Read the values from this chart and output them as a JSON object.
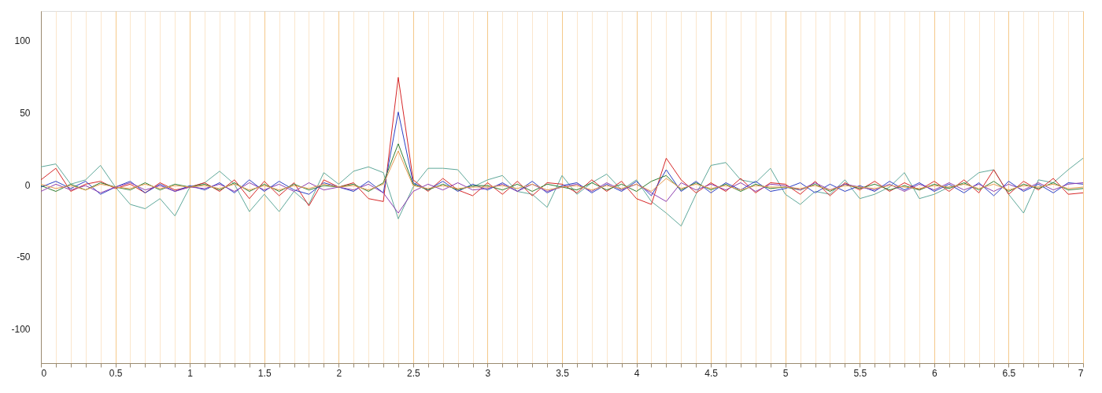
{
  "chart_data": {
    "type": "line",
    "x": [
      0,
      0.1,
      0.2,
      0.3,
      0.4,
      0.5,
      0.6,
      0.7,
      0.8,
      0.9,
      1,
      1.1,
      1.2,
      1.3,
      1.4,
      1.5,
      1.6,
      1.7,
      1.8,
      1.9,
      2,
      2.1,
      2.2,
      2.3,
      2.4,
      2.5,
      2.6,
      2.7,
      2.8,
      2.9,
      3,
      3.1,
      3.2,
      3.3,
      3.4,
      3.5,
      3.6,
      3.7,
      3.8,
      3.9,
      4,
      4.1,
      4.2,
      4.3,
      4.4,
      4.5,
      4.6,
      4.7,
      4.8,
      4.9,
      5,
      5.1,
      5.2,
      5.3,
      5.4,
      5.5,
      5.6,
      5.7,
      5.8,
      5.9,
      6,
      6.1,
      6.2,
      6.3,
      6.4,
      6.5,
      6.6,
      6.7,
      6.8,
      6.9,
      7
    ],
    "series": [
      {
        "color": "#5fa89a",
        "values": [
          14,
          16,
          2,
          5,
          15,
          0,
          -12,
          -15,
          -8,
          -20,
          0,
          3,
          11,
          2,
          -17,
          -5,
          -17,
          -3,
          -12,
          10,
          2,
          11,
          14,
          10,
          -22,
          0,
          13,
          13,
          12,
          0,
          5,
          8,
          -3,
          -5,
          -14,
          8,
          -5,
          3,
          9,
          -2,
          5,
          -10,
          -18,
          -27,
          -5,
          15,
          17,
          5,
          3,
          13,
          -5,
          -12,
          -3,
          -5,
          5,
          -8,
          -5,
          0,
          10,
          -8,
          -5,
          0,
          2,
          10,
          12,
          -5,
          -18,
          5,
          3,
          12,
          20
        ]
      },
      {
        "color": "#d62728",
        "values": [
          5,
          13,
          -3,
          2,
          4,
          -1,
          2,
          -4,
          3,
          -2,
          0,
          3,
          -3,
          5,
          -8,
          4,
          -6,
          3,
          -13,
          5,
          0,
          3,
          -8,
          -10,
          76,
          5,
          -3,
          6,
          -2,
          -6,
          3,
          -5,
          4,
          -6,
          3,
          2,
          -4,
          5,
          -3,
          4,
          -8,
          -12,
          20,
          5,
          -4,
          3,
          -3,
          6,
          -4,
          3,
          2,
          -5,
          4,
          -6,
          3,
          -2,
          4,
          -3,
          3,
          -2,
          4,
          -3,
          5,
          -4,
          12,
          -5,
          4,
          -2,
          6,
          -5,
          -4
        ]
      },
      {
        "color": "#2b3fc4",
        "values": [
          0,
          4,
          -1,
          4,
          -5,
          0,
          4,
          -4,
          2,
          -3,
          1,
          -2,
          3,
          -4,
          5,
          -3,
          4,
          -2,
          -5,
          3,
          0,
          -3,
          4,
          -4,
          52,
          3,
          -2,
          4,
          -3,
          2,
          -2,
          3,
          -3,
          4,
          -4,
          1,
          3,
          -4,
          2,
          -3,
          4,
          -6,
          12,
          -3,
          4,
          -4,
          3,
          -2,
          4,
          -3,
          -1,
          3,
          -4,
          2,
          -3,
          1,
          -3,
          4,
          -2,
          3,
          -3,
          2,
          -4,
          3,
          -6,
          4,
          -3,
          2,
          -4,
          3,
          2
        ]
      },
      {
        "color": "#2e7d32",
        "values": [
          1,
          -3,
          2,
          -2,
          3,
          0,
          -2,
          3,
          -2,
          2,
          0,
          2,
          -2,
          3,
          -3,
          2,
          -3,
          2,
          -2,
          1,
          0,
          2,
          -3,
          3,
          30,
          2,
          -2,
          2,
          -2,
          1,
          1,
          -2,
          2,
          -3,
          2,
          0,
          -2,
          3,
          -2,
          2,
          -3,
          4,
          8,
          -2,
          3,
          -2,
          2,
          -3,
          2,
          -1,
          0,
          -2,
          2,
          -3,
          2,
          -1,
          2,
          -2,
          1,
          -2,
          2,
          -1,
          3,
          -2,
          4,
          -3,
          2,
          -1,
          3,
          -2,
          -1
        ]
      },
      {
        "color": "#8e3fb0",
        "values": [
          -3,
          2,
          -2,
          1,
          -4,
          0,
          3,
          -2,
          1,
          -3,
          0,
          -1,
          2,
          -3,
          3,
          -2,
          2,
          -3,
          3,
          -2,
          0,
          -2,
          2,
          -4,
          -18,
          -3,
          2,
          -2,
          3,
          -2,
          -1,
          2,
          -3,
          2,
          -3,
          0,
          2,
          -3,
          3,
          -2,
          2,
          -4,
          -10,
          3,
          -2,
          2,
          -2,
          3,
          -3,
          2,
          1,
          -2,
          3,
          -2,
          2,
          0,
          -2,
          2,
          -3,
          2,
          -2,
          3,
          -2,
          2,
          -3,
          2,
          -2,
          3,
          -2,
          2,
          3
        ]
      },
      {
        "color": "#e69a4f",
        "values": [
          2,
          -1,
          1,
          -2,
          2,
          0,
          -1,
          2,
          -1,
          1,
          0,
          1,
          -1,
          2,
          -2,
          1,
          -2,
          1,
          -1,
          2,
          0,
          1,
          -2,
          2,
          25,
          1,
          -1,
          1,
          -1,
          0,
          0,
          1,
          -1,
          2,
          -2,
          0,
          1,
          -2,
          1,
          -1,
          2,
          -3,
          6,
          -1,
          2,
          -1,
          1,
          -2,
          1,
          0,
          0,
          -1,
          1,
          -2,
          1,
          0,
          -1,
          1,
          0,
          -1,
          1,
          0,
          2,
          -1,
          2,
          -2,
          1,
          0,
          2,
          -1,
          0
        ]
      }
    ],
    "xlim": [
      0,
      7
    ],
    "ylim": [
      -122,
      122
    ],
    "xticks": [
      0,
      {
        "value": 0.1,
        "label": null
      },
      {
        "value": 0.2,
        "label": null
      },
      {
        "value": 0.3,
        "label": null
      },
      {
        "value": 0.4,
        "label": null
      },
      0.5,
      {
        "value": 0.6,
        "label": null
      },
      {
        "value": 0.7,
        "label": null
      },
      {
        "value": 0.8,
        "label": null
      },
      {
        "value": 0.9,
        "label": null
      },
      1,
      {
        "value": 1.1,
        "label": null
      },
      {
        "value": 1.2,
        "label": null
      },
      {
        "value": 1.3,
        "label": null
      },
      {
        "value": 1.4,
        "label": null
      },
      1.5,
      {
        "value": 1.6,
        "label": null
      },
      {
        "value": 1.7,
        "label": null
      },
      {
        "value": 1.8,
        "label": null
      },
      {
        "value": 1.9,
        "label": null
      },
      2,
      {
        "value": 2.1,
        "label": null
      },
      {
        "value": 2.2,
        "label": null
      },
      {
        "value": 2.3,
        "label": null
      },
      {
        "value": 2.4,
        "label": null
      },
      2.5,
      {
        "value": 2.6,
        "label": null
      },
      {
        "value": 2.7,
        "label": null
      },
      {
        "value": 2.8,
        "label": null
      },
      {
        "value": 2.9,
        "label": null
      },
      3,
      {
        "value": 3.1,
        "label": null
      },
      {
        "value": 3.2,
        "label": null
      },
      {
        "value": 3.3,
        "label": null
      },
      {
        "value": 3.4,
        "label": null
      },
      3.5,
      {
        "value": 3.6,
        "label": null
      },
      {
        "value": 3.7,
        "label": null
      },
      {
        "value": 3.8,
        "label": null
      },
      {
        "value": 3.9,
        "label": null
      },
      4,
      {
        "value": 4.1,
        "label": null
      },
      {
        "value": 4.2,
        "label": null
      },
      {
        "value": 4.3,
        "label": null
      },
      {
        "value": 4.4,
        "label": null
      },
      4.5,
      {
        "value": 4.6,
        "label": null
      },
      {
        "value": 4.7,
        "label": null
      },
      {
        "value": 4.8,
        "label": null
      },
      {
        "value": 4.9,
        "label": null
      },
      5,
      {
        "value": 5.1,
        "label": null
      },
      {
        "value": 5.2,
        "label": null
      },
      {
        "value": 5.3,
        "label": null
      },
      {
        "value": 5.4,
        "label": null
      },
      5.5,
      {
        "value": 5.6,
        "label": null
      },
      {
        "value": 5.7,
        "label": null
      },
      {
        "value": 5.8,
        "label": null
      },
      {
        "value": 5.9,
        "label": null
      },
      6,
      {
        "value": 6.1,
        "label": null
      },
      {
        "value": 6.2,
        "label": null
      },
      {
        "value": 6.3,
        "label": null
      },
      {
        "value": 6.4,
        "label": null
      },
      6.5,
      {
        "value": 6.6,
        "label": null
      },
      {
        "value": 6.7,
        "label": null
      },
      {
        "value": 6.8,
        "label": null
      },
      {
        "value": 6.9,
        "label": null
      },
      7
    ],
    "yticks": [
      -100,
      -50,
      0,
      50,
      100
    ],
    "grid": "x",
    "legend": false,
    "marker": "none",
    "line_style": "solid"
  }
}
